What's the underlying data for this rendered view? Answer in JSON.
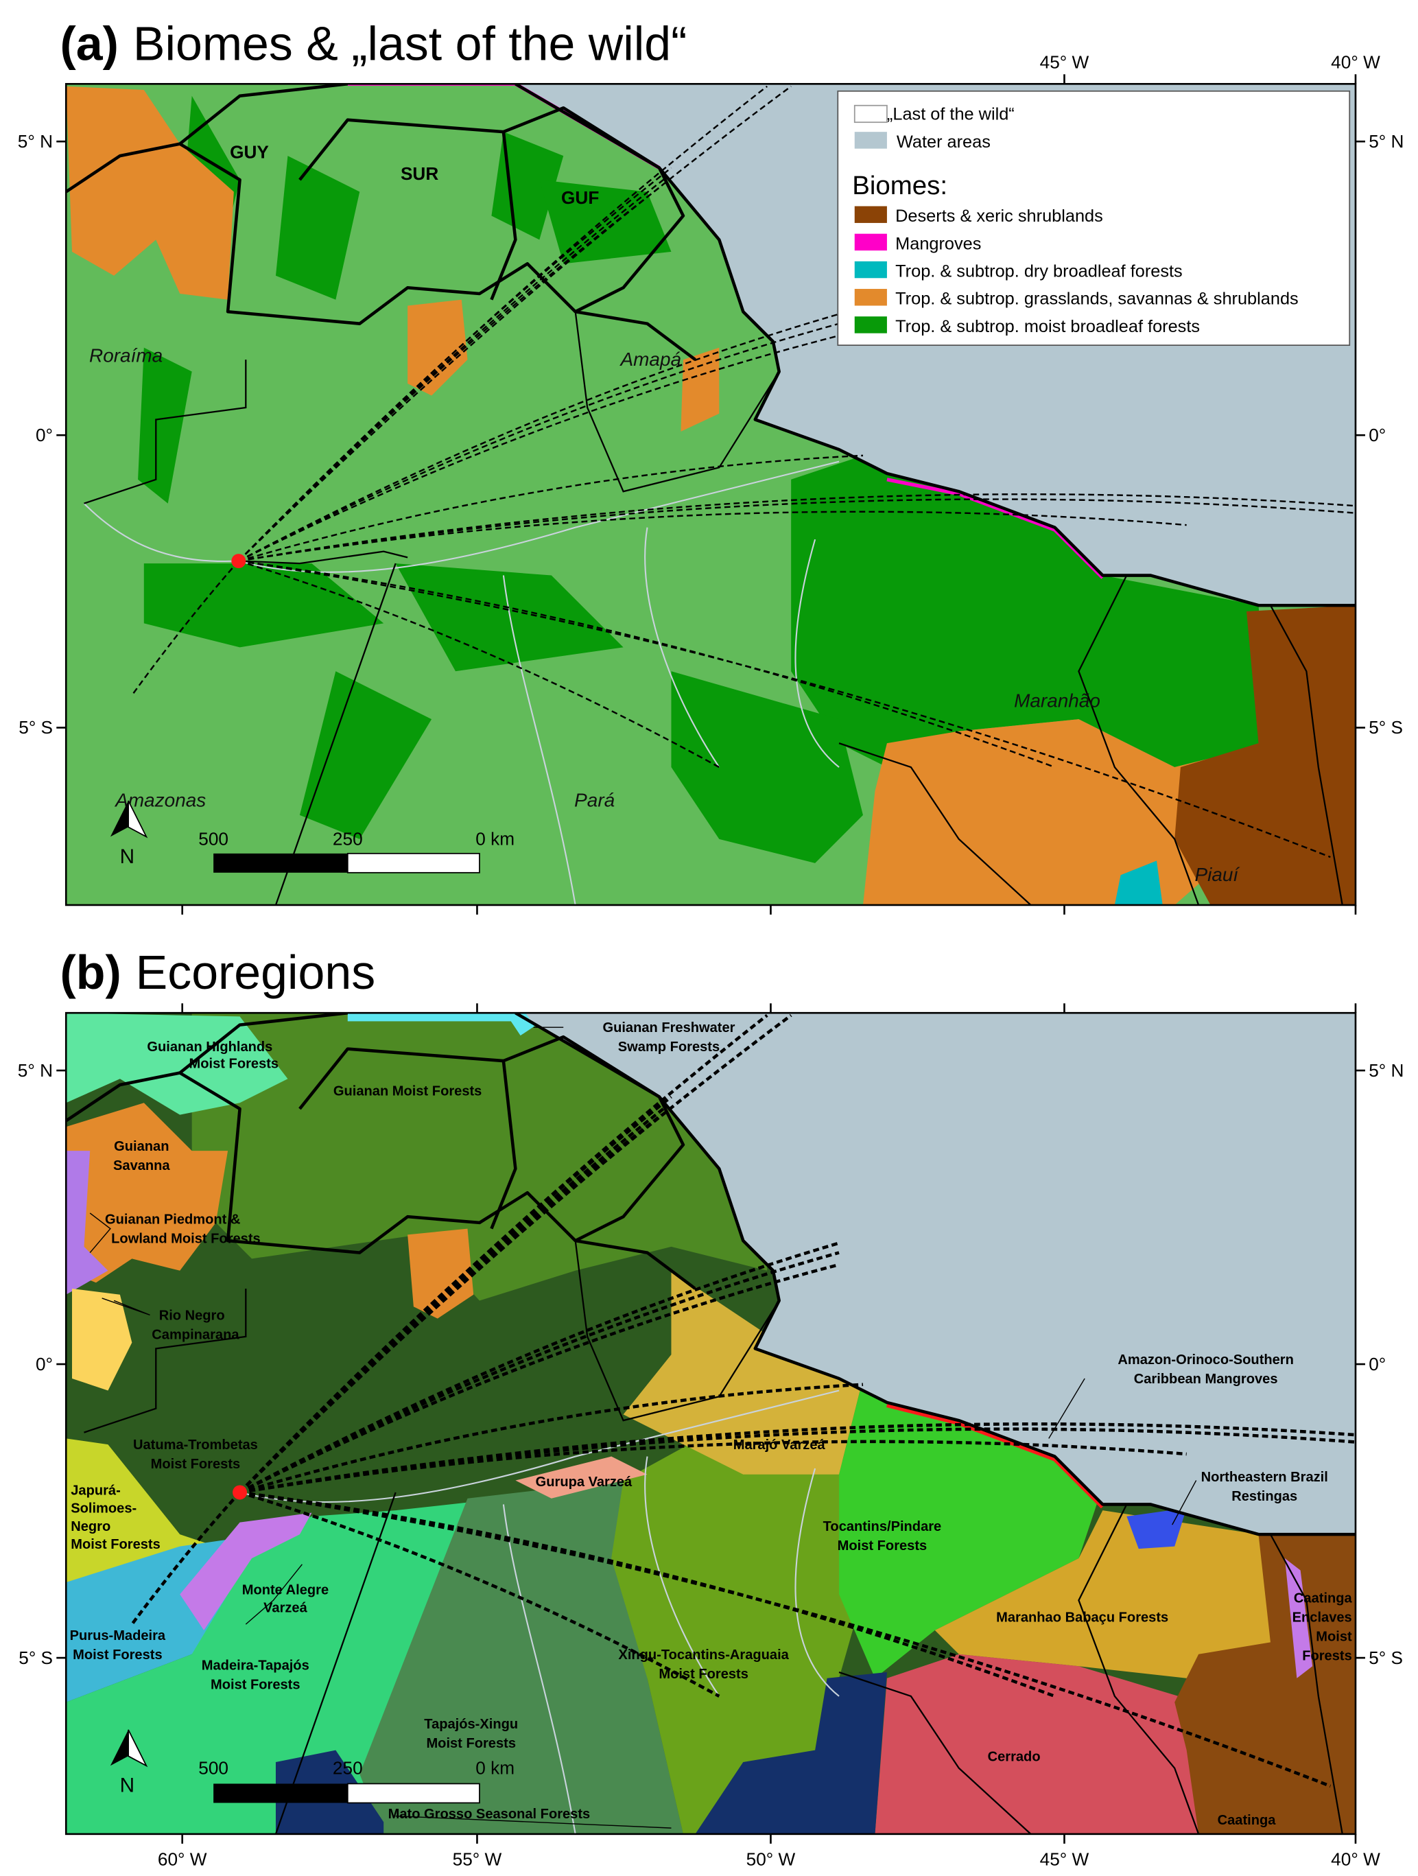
{
  "panel_a": {
    "letter": "(a)",
    "title": "Biomes & „last of the wild“",
    "countries": [
      "GUY",
      "SUR",
      "GUF"
    ],
    "states": [
      "Roraíma",
      "Amapá",
      "Maranhão",
      "Amazonas",
      "Pará",
      "Piauí"
    ],
    "legend": {
      "last_of_the_wild": "„Last of the wild“",
      "water_areas": "Water areas",
      "biomes_heading": "Biomes:",
      "items": [
        {
          "label": "Deserts & xeric shrublands",
          "color": "#8b4306"
        },
        {
          "label": "Mangroves",
          "color": "#ff00c8"
        },
        {
          "label": "Trop. & subtrop. dry broadleaf forests",
          "color": "#00b9be"
        },
        {
          "label": "Trop. & subtrop. grasslands, savannas & shrublands",
          "color": "#e38a2c"
        },
        {
          "label": "Trop. & subtrop. moist broadleaf forests",
          "color": "#089a09"
        }
      ],
      "water_color": "#b4c7d0",
      "land_color": "#62bb5a"
    }
  },
  "panel_b": {
    "letter": "(b)",
    "title": "Ecoregions",
    "ecoregions": {
      "guianan_highlands": [
        "Guianan Highlands",
        "Moist Forests"
      ],
      "guianan_freshwater": [
        "Guianan Freshwater",
        "Swamp Forests"
      ],
      "guianan_moist": [
        "Guianan Moist Forests"
      ],
      "guianan_savanna": [
        "Guianan",
        "Savanna"
      ],
      "guianan_piedmont": [
        "Guianan Piedmont &",
        "Lowland Moist Forests"
      ],
      "rio_negro": [
        "Rio Negro",
        "Campinarana"
      ],
      "uatuma": [
        "Uatuma-Trombetas",
        "Moist Forests"
      ],
      "japura": [
        "Japurá-",
        "Solimoes-",
        "Negro",
        "Moist Forests"
      ],
      "monte_alegre": [
        "Monte Alegre",
        "Varzeá"
      ],
      "purus_madeira": [
        "Purus-Madeira",
        "Moist Forests"
      ],
      "madeira_tapajos": [
        "Madeira-Tapajós",
        "Moist Forests"
      ],
      "gurupa": [
        "Gurupa Varzeá"
      ],
      "marajo": [
        "Marajó Varzeá"
      ],
      "tocantins": [
        "Tocantins/Pindare",
        "Moist Forests"
      ],
      "xingu_tocantins": [
        "Xingu-Tocantins-Araguaia",
        "Moist Forests"
      ],
      "tapajos_xingu": [
        "Tapajós-Xingu",
        "Moist Forests"
      ],
      "cerrado": [
        "Cerrado"
      ],
      "babacu": [
        "Maranhao Babaçu Forests"
      ],
      "caatinga_enclaves": [
        "Caatinga",
        "Enclaves",
        "Moist",
        "Forests"
      ],
      "caatinga": [
        "Caatinga"
      ],
      "mato_grosso": [
        "Mato Grosso Seasonal Forests"
      ],
      "mangroves": [
        "Amazon-Orinoco-Southern",
        "Caribbean Mangroves"
      ],
      "restingas": [
        "Northeastern Brazil",
        "Restingas"
      ]
    }
  },
  "axes": {
    "lon_top": [
      "45° W",
      "40° W"
    ],
    "lon_bottom": [
      "60° W",
      "55° W",
      "50° W",
      "45° W",
      "40° W"
    ],
    "lat_left": [
      "5° N",
      "0°",
      "5° S"
    ],
    "lat_right": [
      "5° N",
      "0°",
      "5° S"
    ]
  },
  "scale_bar": {
    "labels": [
      "500",
      "250",
      "0 km"
    ]
  },
  "north_arrow": {
    "label": "N"
  },
  "colors": {
    "study_site": "#ff1a1a",
    "water": "#b4c7d0"
  }
}
